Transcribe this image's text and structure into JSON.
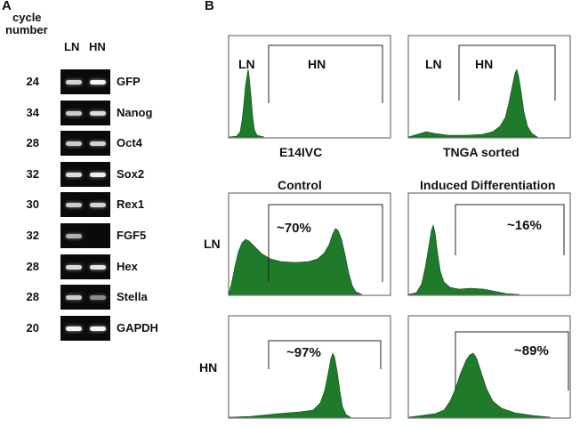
{
  "panel_a": {
    "letter": "A",
    "header_line1": "cycle",
    "header_line2": "number",
    "lane_ln": "LN",
    "lane_hn": "HN",
    "rows": [
      {
        "cycle": "24",
        "gene": "GFP"
      },
      {
        "cycle": "34",
        "gene": "Nanog"
      },
      {
        "cycle": "28",
        "gene": "Oct4"
      },
      {
        "cycle": "32",
        "gene": "Sox2"
      },
      {
        "cycle": "30",
        "gene": "Rex1"
      },
      {
        "cycle": "32",
        "gene": "FGF5"
      },
      {
        "cycle": "28",
        "gene": "Hex"
      },
      {
        "cycle": "28",
        "gene": "Stella"
      },
      {
        "cycle": "20",
        "gene": "GAPDH"
      }
    ]
  },
  "panel_b": {
    "letter": "B",
    "top_left": {
      "gate_ln": "LN",
      "gate_hn": "HN",
      "caption": "E14IVC"
    },
    "top_right": {
      "gate_ln": "LN",
      "gate_hn": "HN",
      "caption": "TNGA sorted"
    },
    "col_control": "Control",
    "col_induced": "Induced Differentiation",
    "row_ln": "LN",
    "row_hn": "HN",
    "ln_control_pct": "~70%",
    "ln_induced_pct": "~16%",
    "hn_control_pct": "~97%",
    "hn_induced_pct": "~89%",
    "fill_color": "#1f7a2a"
  }
}
